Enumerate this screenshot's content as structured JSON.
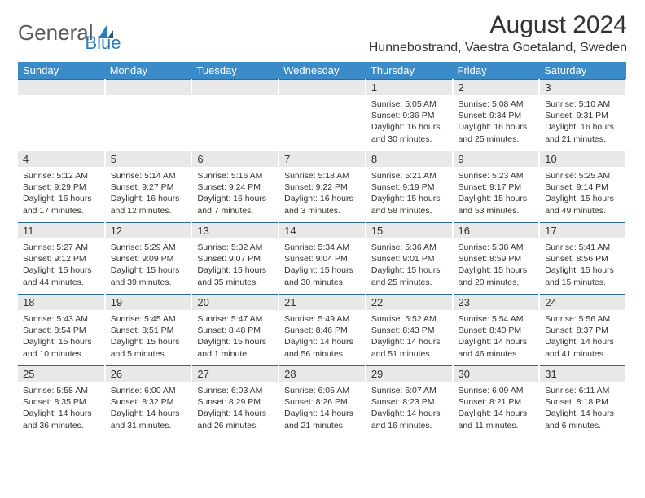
{
  "brand": {
    "general": "General",
    "blue": "Blue"
  },
  "title": "August 2024",
  "location": "Hunnebostrand, Vaestra Goetaland, Sweden",
  "weekdays": [
    "Sunday",
    "Monday",
    "Tuesday",
    "Wednesday",
    "Thursday",
    "Friday",
    "Saturday"
  ],
  "colors": {
    "header_bg": "#3b8bc9",
    "daynum_bg": "#e8e8e8",
    "border_top": "#2a6aa0"
  },
  "grid": [
    [
      {
        "n": "",
        "sr": "",
        "ss": "",
        "dl": ""
      },
      {
        "n": "",
        "sr": "",
        "ss": "",
        "dl": ""
      },
      {
        "n": "",
        "sr": "",
        "ss": "",
        "dl": ""
      },
      {
        "n": "",
        "sr": "",
        "ss": "",
        "dl": ""
      },
      {
        "n": "1",
        "sr": "Sunrise: 5:05 AM",
        "ss": "Sunset: 9:36 PM",
        "dl": "Daylight: 16 hours and 30 minutes."
      },
      {
        "n": "2",
        "sr": "Sunrise: 5:08 AM",
        "ss": "Sunset: 9:34 PM",
        "dl": "Daylight: 16 hours and 25 minutes."
      },
      {
        "n": "3",
        "sr": "Sunrise: 5:10 AM",
        "ss": "Sunset: 9:31 PM",
        "dl": "Daylight: 16 hours and 21 minutes."
      }
    ],
    [
      {
        "n": "4",
        "sr": "Sunrise: 5:12 AM",
        "ss": "Sunset: 9:29 PM",
        "dl": "Daylight: 16 hours and 17 minutes."
      },
      {
        "n": "5",
        "sr": "Sunrise: 5:14 AM",
        "ss": "Sunset: 9:27 PM",
        "dl": "Daylight: 16 hours and 12 minutes."
      },
      {
        "n": "6",
        "sr": "Sunrise: 5:16 AM",
        "ss": "Sunset: 9:24 PM",
        "dl": "Daylight: 16 hours and 7 minutes."
      },
      {
        "n": "7",
        "sr": "Sunrise: 5:18 AM",
        "ss": "Sunset: 9:22 PM",
        "dl": "Daylight: 16 hours and 3 minutes."
      },
      {
        "n": "8",
        "sr": "Sunrise: 5:21 AM",
        "ss": "Sunset: 9:19 PM",
        "dl": "Daylight: 15 hours and 58 minutes."
      },
      {
        "n": "9",
        "sr": "Sunrise: 5:23 AM",
        "ss": "Sunset: 9:17 PM",
        "dl": "Daylight: 15 hours and 53 minutes."
      },
      {
        "n": "10",
        "sr": "Sunrise: 5:25 AM",
        "ss": "Sunset: 9:14 PM",
        "dl": "Daylight: 15 hours and 49 minutes."
      }
    ],
    [
      {
        "n": "11",
        "sr": "Sunrise: 5:27 AM",
        "ss": "Sunset: 9:12 PM",
        "dl": "Daylight: 15 hours and 44 minutes."
      },
      {
        "n": "12",
        "sr": "Sunrise: 5:29 AM",
        "ss": "Sunset: 9:09 PM",
        "dl": "Daylight: 15 hours and 39 minutes."
      },
      {
        "n": "13",
        "sr": "Sunrise: 5:32 AM",
        "ss": "Sunset: 9:07 PM",
        "dl": "Daylight: 15 hours and 35 minutes."
      },
      {
        "n": "14",
        "sr": "Sunrise: 5:34 AM",
        "ss": "Sunset: 9:04 PM",
        "dl": "Daylight: 15 hours and 30 minutes."
      },
      {
        "n": "15",
        "sr": "Sunrise: 5:36 AM",
        "ss": "Sunset: 9:01 PM",
        "dl": "Daylight: 15 hours and 25 minutes."
      },
      {
        "n": "16",
        "sr": "Sunrise: 5:38 AM",
        "ss": "Sunset: 8:59 PM",
        "dl": "Daylight: 15 hours and 20 minutes."
      },
      {
        "n": "17",
        "sr": "Sunrise: 5:41 AM",
        "ss": "Sunset: 8:56 PM",
        "dl": "Daylight: 15 hours and 15 minutes."
      }
    ],
    [
      {
        "n": "18",
        "sr": "Sunrise: 5:43 AM",
        "ss": "Sunset: 8:54 PM",
        "dl": "Daylight: 15 hours and 10 minutes."
      },
      {
        "n": "19",
        "sr": "Sunrise: 5:45 AM",
        "ss": "Sunset: 8:51 PM",
        "dl": "Daylight: 15 hours and 5 minutes."
      },
      {
        "n": "20",
        "sr": "Sunrise: 5:47 AM",
        "ss": "Sunset: 8:48 PM",
        "dl": "Daylight: 15 hours and 1 minute."
      },
      {
        "n": "21",
        "sr": "Sunrise: 5:49 AM",
        "ss": "Sunset: 8:46 PM",
        "dl": "Daylight: 14 hours and 56 minutes."
      },
      {
        "n": "22",
        "sr": "Sunrise: 5:52 AM",
        "ss": "Sunset: 8:43 PM",
        "dl": "Daylight: 14 hours and 51 minutes."
      },
      {
        "n": "23",
        "sr": "Sunrise: 5:54 AM",
        "ss": "Sunset: 8:40 PM",
        "dl": "Daylight: 14 hours and 46 minutes."
      },
      {
        "n": "24",
        "sr": "Sunrise: 5:56 AM",
        "ss": "Sunset: 8:37 PM",
        "dl": "Daylight: 14 hours and 41 minutes."
      }
    ],
    [
      {
        "n": "25",
        "sr": "Sunrise: 5:58 AM",
        "ss": "Sunset: 8:35 PM",
        "dl": "Daylight: 14 hours and 36 minutes."
      },
      {
        "n": "26",
        "sr": "Sunrise: 6:00 AM",
        "ss": "Sunset: 8:32 PM",
        "dl": "Daylight: 14 hours and 31 minutes."
      },
      {
        "n": "27",
        "sr": "Sunrise: 6:03 AM",
        "ss": "Sunset: 8:29 PM",
        "dl": "Daylight: 14 hours and 26 minutes."
      },
      {
        "n": "28",
        "sr": "Sunrise: 6:05 AM",
        "ss": "Sunset: 8:26 PM",
        "dl": "Daylight: 14 hours and 21 minutes."
      },
      {
        "n": "29",
        "sr": "Sunrise: 6:07 AM",
        "ss": "Sunset: 8:23 PM",
        "dl": "Daylight: 14 hours and 16 minutes."
      },
      {
        "n": "30",
        "sr": "Sunrise: 6:09 AM",
        "ss": "Sunset: 8:21 PM",
        "dl": "Daylight: 14 hours and 11 minutes."
      },
      {
        "n": "31",
        "sr": "Sunrise: 6:11 AM",
        "ss": "Sunset: 8:18 PM",
        "dl": "Daylight: 14 hours and 6 minutes."
      }
    ]
  ]
}
